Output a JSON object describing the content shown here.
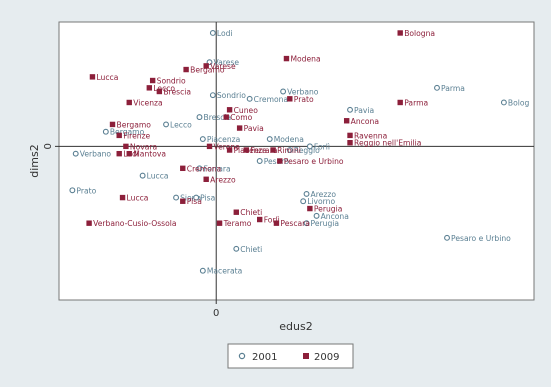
{
  "chart_data": {
    "type": "scatter",
    "title": "",
    "xlabel": "edus2",
    "ylabel": "dims2",
    "x_ticks": [
      {
        "value": 0,
        "label": "0"
      }
    ],
    "y_ticks": [
      {
        "value": 0,
        "label": "0"
      }
    ],
    "xlim": [
      -0.47,
      0.95
    ],
    "ylim": [
      -0.42,
      0.34
    ],
    "grid": false,
    "zero_lines": true,
    "legend_position": "bottom",
    "colors": {
      "2001": "#5a7f92",
      "2009": "#8c1f3a"
    },
    "series": [
      {
        "name": "2001",
        "marker": "hollow-circle",
        "points": [
          {
            "label": "Lodi",
            "x": -0.01,
            "y": 0.31
          },
          {
            "label": "Varese",
            "x": -0.02,
            "y": 0.23
          },
          {
            "label": "Parma",
            "x": 0.66,
            "y": 0.16
          },
          {
            "label": "Bolog",
            "x": 0.86,
            "y": 0.12
          },
          {
            "label": "Sondrio",
            "x": -0.01,
            "y": 0.14
          },
          {
            "label": "Verbano",
            "x": 0.2,
            "y": 0.15
          },
          {
            "label": "Cremona",
            "x": 0.1,
            "y": 0.13
          },
          {
            "label": "Pavia",
            "x": 0.4,
            "y": 0.1
          },
          {
            "label": "Brescia",
            "x": -0.05,
            "y": 0.08
          },
          {
            "label": "Lecco",
            "x": -0.15,
            "y": 0.06
          },
          {
            "label": "Bergamo",
            "x": -0.33,
            "y": 0.04
          },
          {
            "label": "Modena",
            "x": 0.16,
            "y": 0.02
          },
          {
            "label": "Piacenza",
            "x": -0.04,
            "y": 0.02
          },
          {
            "label": "Verbano",
            "x": -0.42,
            "y": -0.02
          },
          {
            "label": "Forlì",
            "x": 0.28,
            "y": 0.0
          },
          {
            "label": "Reggio",
            "x": 0.22,
            "y": -0.01
          },
          {
            "label": "Pesaro",
            "x": 0.13,
            "y": -0.04
          },
          {
            "label": "Ferrara",
            "x": -0.05,
            "y": -0.06
          },
          {
            "label": "Lucca",
            "x": -0.22,
            "y": -0.08
          },
          {
            "label": "Prato",
            "x": -0.43,
            "y": -0.12
          },
          {
            "label": "Siena",
            "x": -0.12,
            "y": -0.14
          },
          {
            "label": "Pisa",
            "x": -0.06,
            "y": -0.14
          },
          {
            "label": "Arezzo",
            "x": 0.27,
            "y": -0.13
          },
          {
            "label": "Livorno",
            "x": 0.26,
            "y": -0.15
          },
          {
            "label": "Ancona",
            "x": 0.3,
            "y": -0.19
          },
          {
            "label": "Perugia",
            "x": 0.27,
            "y": -0.21
          },
          {
            "label": "Pesaro e Urbino",
            "x": 0.69,
            "y": -0.25
          },
          {
            "label": "Chieti",
            "x": 0.06,
            "y": -0.28
          },
          {
            "label": "Macerata",
            "x": -0.04,
            "y": -0.34
          }
        ]
      },
      {
        "name": "2009",
        "marker": "filled-square",
        "points": [
          {
            "label": "Bologna",
            "x": 0.55,
            "y": 0.31
          },
          {
            "label": "Modena",
            "x": 0.21,
            "y": 0.24
          },
          {
            "label": "Varese",
            "x": -0.03,
            "y": 0.22
          },
          {
            "label": "Bergamo",
            "x": -0.09,
            "y": 0.21
          },
          {
            "label": "Lucca",
            "x": -0.37,
            "y": 0.19
          },
          {
            "label": "Sondrio",
            "x": -0.19,
            "y": 0.18
          },
          {
            "label": "Lecco",
            "x": -0.2,
            "y": 0.16
          },
          {
            "label": "Brescia",
            "x": -0.17,
            "y": 0.15
          },
          {
            "label": "Vicenza",
            "x": -0.26,
            "y": 0.12
          },
          {
            "label": "Prato",
            "x": 0.22,
            "y": 0.13
          },
          {
            "label": "Parma",
            "x": 0.55,
            "y": 0.12
          },
          {
            "label": "Cuneo",
            "x": 0.04,
            "y": 0.1
          },
          {
            "label": "Como",
            "x": 0.03,
            "y": 0.08
          },
          {
            "label": "Ancona",
            "x": 0.39,
            "y": 0.07
          },
          {
            "label": "Pavia",
            "x": 0.07,
            "y": 0.05
          },
          {
            "label": "Bergamo",
            "x": -0.31,
            "y": 0.06
          },
          {
            "label": "Firenze",
            "x": -0.29,
            "y": 0.03
          },
          {
            "label": "Ravenna",
            "x": 0.4,
            "y": 0.03
          },
          {
            "label": "Reggio nell'Emilia",
            "x": 0.4,
            "y": 0.01
          },
          {
            "label": "Novara",
            "x": -0.27,
            "y": 0.0
          },
          {
            "label": "Verona",
            "x": -0.02,
            "y": 0.0
          },
          {
            "label": "Lodi",
            "x": -0.29,
            "y": -0.02
          },
          {
            "label": "Mantova",
            "x": -0.26,
            "y": -0.02
          },
          {
            "label": "Piacenza",
            "x": 0.04,
            "y": -0.01
          },
          {
            "label": "Ferrara",
            "x": 0.09,
            "y": -0.01
          },
          {
            "label": "Rimini",
            "x": 0.17,
            "y": -0.01
          },
          {
            "label": "Pesaro e Urbino",
            "x": 0.19,
            "y": -0.04
          },
          {
            "label": "Cremona",
            "x": -0.1,
            "y": -0.06
          },
          {
            "label": "Arezzo",
            "x": -0.03,
            "y": -0.09
          },
          {
            "label": "Lucca",
            "x": -0.28,
            "y": -0.14
          },
          {
            "label": "Pisa",
            "x": -0.1,
            "y": -0.15
          },
          {
            "label": "Chieti",
            "x": 0.06,
            "y": -0.18
          },
          {
            "label": "Perugia",
            "x": 0.28,
            "y": -0.17
          },
          {
            "label": "Forlì",
            "x": 0.13,
            "y": -0.2
          },
          {
            "label": "Verbano-Cusio-Ossola",
            "x": -0.38,
            "y": -0.21
          },
          {
            "label": "Teramo",
            "x": 0.01,
            "y": -0.21
          },
          {
            "label": "Pescara",
            "x": 0.18,
            "y": -0.21
          }
        ]
      }
    ]
  }
}
